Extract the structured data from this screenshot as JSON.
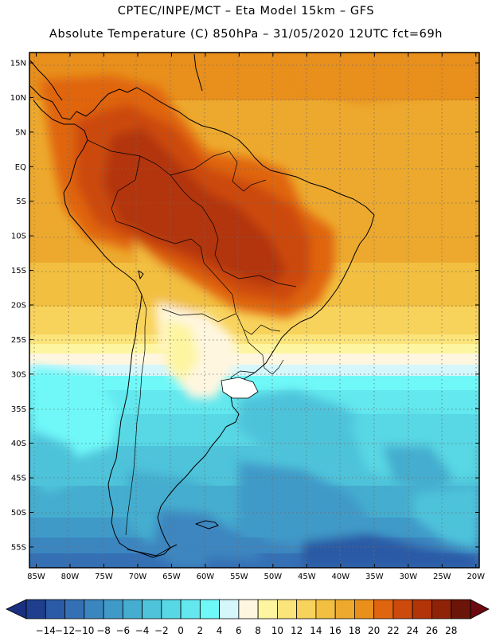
{
  "header": {
    "line1": "CPTEC/INPE/MCT –  Eta Model 15km – GFS",
    "line2": "Absolute Temperature (C) 850hPa – 31/05/2020 12UTC fct=69h"
  },
  "map": {
    "lat_labels": [
      "15N",
      "10N",
      "5N",
      "EQ",
      "5S",
      "10S",
      "15S",
      "20S",
      "25S",
      "30S",
      "35S",
      "40S",
      "45S",
      "50S",
      "55S"
    ],
    "lon_labels": [
      "85W",
      "80W",
      "75W",
      "70W",
      "65W",
      "60W",
      "55W",
      "50W",
      "45W",
      "40W",
      "35W",
      "30W",
      "25W",
      "20W"
    ],
    "lat_range": [
      -58,
      16.5
    ],
    "lon_range": [
      -86,
      -19.5
    ]
  },
  "colorbar": {
    "labels": [
      "-14",
      "-12",
      "-10",
      "-8",
      "-6",
      "-4",
      "-2",
      "0",
      "2",
      "4",
      "6",
      "8",
      "10",
      "12",
      "14",
      "16",
      "18",
      "20",
      "22",
      "24",
      "26",
      "28"
    ],
    "colors": [
      "#1f3e8e",
      "#2b5aa6",
      "#3570b5",
      "#3c86c0",
      "#3f9ac8",
      "#45adcf",
      "#4ec3da",
      "#58d7e4",
      "#62e8ee",
      "#6ff8f8",
      "#d5f6fb",
      "#fff6e0",
      "#fdf5a0",
      "#fbe47a",
      "#f8d35c",
      "#f2bf40",
      "#eda92e",
      "#e88f1c",
      "#e0650f",
      "#cc4a0c",
      "#b23509",
      "#8f2308",
      "#6b1508"
    ],
    "low_cap_color": "#1a2f80",
    "high_cap_color": "#6b0a10"
  }
}
